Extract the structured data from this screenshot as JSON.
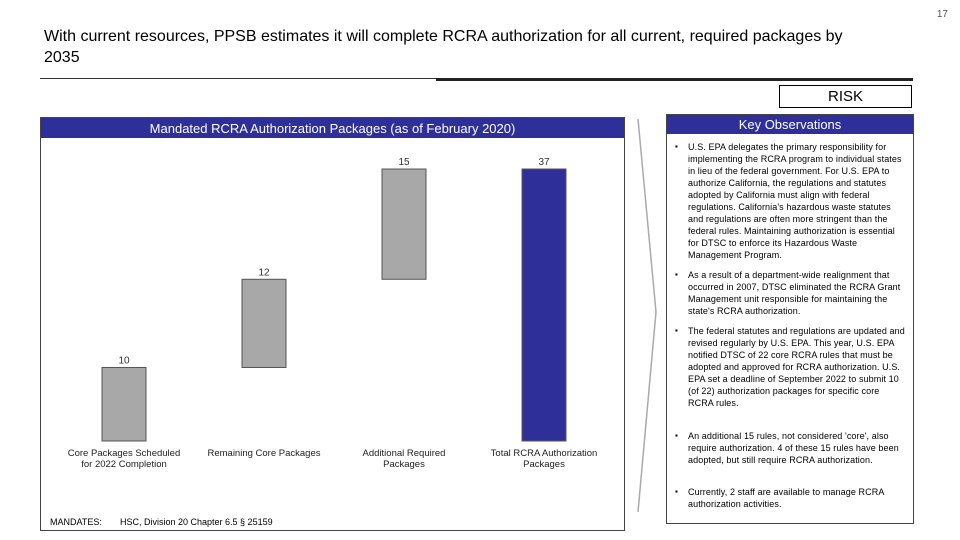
{
  "page_number": "17",
  "title": "With current resources, PPSB estimates it will complete RCRA authorization for all current, required packages by 2035",
  "risk_label": "RISK",
  "chart_panel": {
    "header": "Mandated RCRA Authorization Packages (as of February 2020)"
  },
  "chart_data": {
    "type": "bar",
    "subtype": "waterfall",
    "title": "Mandated RCRA Authorization Packages (as of February 2020)",
    "categories": [
      [
        "Core Packages Scheduled",
        "for 2022 Completion"
      ],
      [
        "Remaining Core Packages"
      ],
      [
        "Additional Required",
        "Packages"
      ],
      [
        "Total RCRA Authorization",
        "Packages"
      ]
    ],
    "values": [
      10,
      12,
      15,
      37
    ],
    "data_labels": [
      "10",
      "12",
      "15",
      "37"
    ],
    "bar_colors": [
      "#a8a8a8",
      "#a8a8a8",
      "#a8a8a8",
      "#2f2f99"
    ],
    "ylim": [
      0,
      37
    ],
    "grid": false,
    "legend": "none"
  },
  "observations": {
    "header": "Key Observations",
    "items": [
      "U.S. EPA delegates the primary responsibility for implementing the RCRA program to individual states in lieu of the federal government. For U.S. EPA to authorize California, the regulations and statutes adopted by California must align with federal regulations. California's hazardous waste statutes and regulations are often more stringent than the federal rules. Maintaining authorization is essential for DTSC to enforce its Hazardous Waste Management Program.",
      "As a result of a department-wide realignment that occurred in 2007, DTSC eliminated the RCRA Grant Management unit responsible for maintaining the state's RCRA authorization.",
      "The federal statutes and regulations are updated and revised regularly by U.S. EPA. This year, U.S. EPA notified DTSC of 22 core RCRA rules that must be adopted and approved for RCRA authorization. U.S. EPA set a deadline of September 2022 to submit 10 (of 22) authorization packages for specific core RCRA rules.",
      "An additional 15 rules, not considered 'core', also require authorization. 4 of these 15 rules have been adopted, but still require RCRA authorization.",
      "Currently, 2 staff are available to manage RCRA authorization activities."
    ]
  },
  "mandates": {
    "label": "MANDATES:",
    "value": "HSC, Division 20 Chapter 6.5 § 25159"
  }
}
